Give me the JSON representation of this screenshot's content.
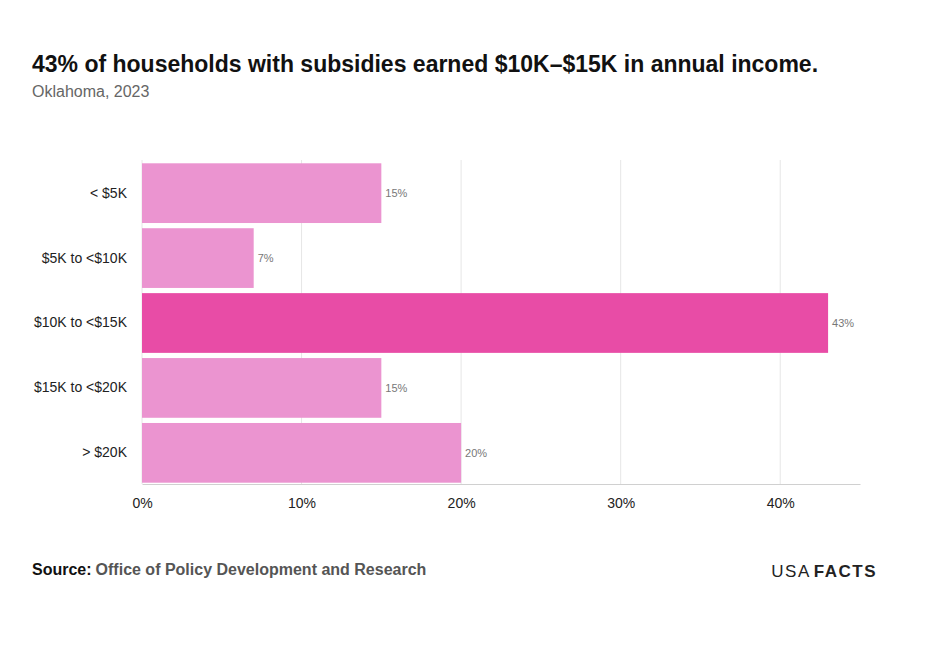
{
  "chart_data": {
    "type": "bar",
    "orientation": "horizontal",
    "title": "43% of households with subsidies earned $10K–$15K in annual income.",
    "subtitle": "Oklahoma, 2023",
    "source_label": "Source:",
    "source": "Office of Policy Development and Research",
    "brand_light": "USA",
    "brand_bold": "FACTS",
    "categories": [
      "< $5K",
      "$5K to <$10K",
      "$10K to <$15K",
      "$15K to <$20K",
      "> $20K"
    ],
    "values": [
      15,
      7,
      43,
      15,
      20
    ],
    "value_labels": [
      "15%",
      "7%",
      "43%",
      "15%",
      "20%"
    ],
    "colors": [
      "#eb94d0",
      "#eb94d0",
      "#e84ca6",
      "#eb94d0",
      "#eb94d0"
    ],
    "xlim": [
      0,
      45
    ],
    "xticks": [
      {
        "value": 0,
        "label": "0%"
      },
      {
        "value": 10,
        "label": "10%"
      },
      {
        "value": 20,
        "label": "20%"
      },
      {
        "value": 30,
        "label": "30%"
      },
      {
        "value": 40,
        "label": "40%"
      }
    ],
    "grid": true,
    "data_labels": true
  }
}
